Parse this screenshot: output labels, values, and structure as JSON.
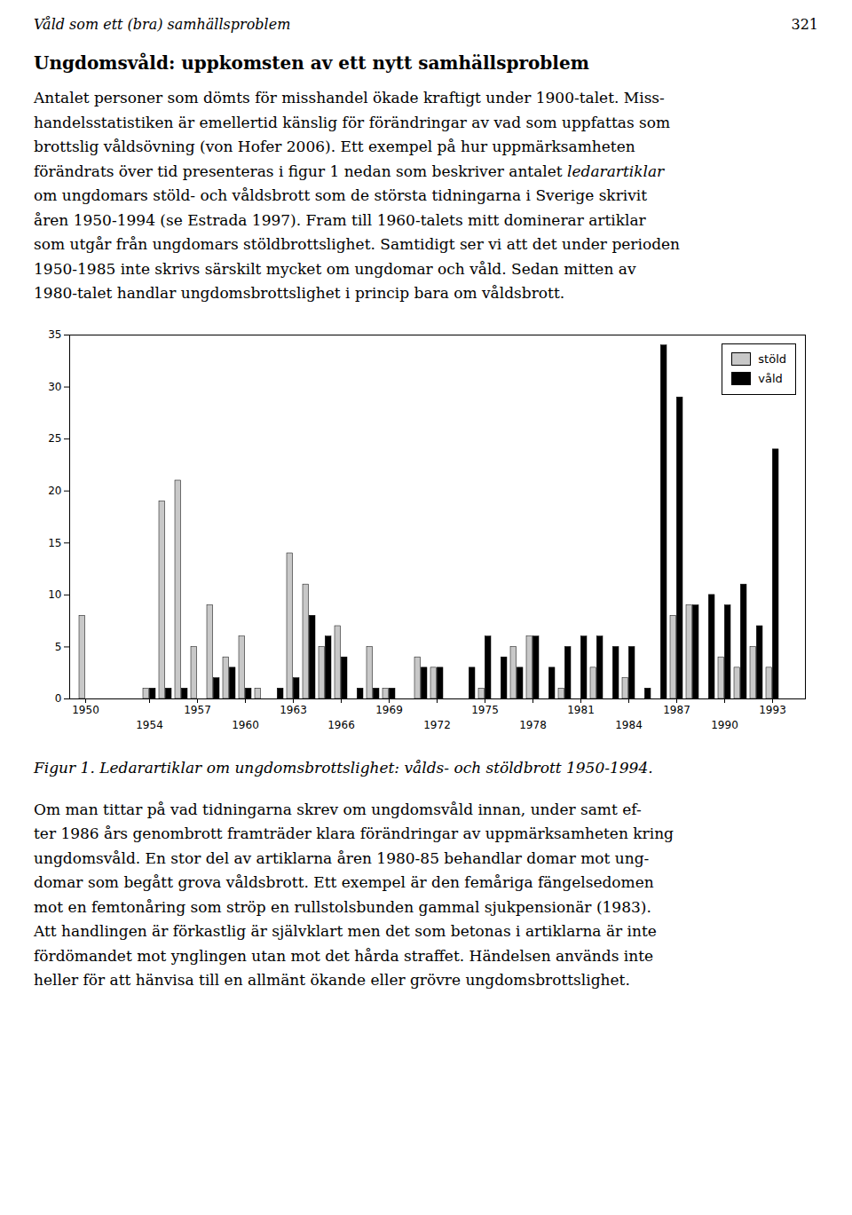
{
  "chart_data": {
    "type": "bar",
    "title": "Figur 1. Ledarartiklar om ungdomsbrottslighet: vålds- och stöldbrott 1950-1994.",
    "categories": [
      "1950",
      null,
      null,
      null,
      "1954",
      null,
      null,
      "1957",
      null,
      null,
      "1960",
      null,
      null,
      "1963",
      null,
      null,
      "1966",
      null,
      null,
      "1969",
      null,
      null,
      "1972",
      null,
      null,
      "1975",
      null,
      null,
      "1978",
      null,
      null,
      "1981",
      null,
      null,
      "1984",
      null,
      null,
      "1987",
      null,
      null,
      "1990",
      null,
      null,
      "1993",
      null
    ],
    "series": [
      {
        "name": "stöld",
        "color": "#c8c8c8",
        "values": [
          8,
          0,
          0,
          0,
          1,
          19,
          21,
          5,
          9,
          4,
          6,
          1,
          0,
          14,
          11,
          5,
          7,
          0,
          5,
          1,
          0,
          4,
          3,
          0,
          0,
          1,
          0,
          5,
          6,
          0,
          1,
          0,
          3,
          0,
          2,
          0,
          0,
          8,
          9,
          0,
          4,
          3,
          5,
          3,
          0
        ]
      },
      {
        "name": "våld",
        "color": "#000000",
        "values": [
          0,
          0,
          0,
          0,
          1,
          1,
          1,
          0,
          2,
          3,
          1,
          0,
          1,
          2,
          8,
          6,
          4,
          1,
          1,
          1,
          0,
          3,
          3,
          0,
          3,
          6,
          4,
          3,
          6,
          3,
          5,
          6,
          6,
          5,
          5,
          1,
          34,
          29,
          9,
          10,
          9,
          11,
          7,
          24,
          0
        ]
      }
    ],
    "ylim": [
      0,
      35
    ],
    "yticks": [
      0,
      5,
      10,
      15,
      20,
      25,
      30,
      35
    ],
    "grid": false,
    "legend": "upper right",
    "annotations": [
      "Våld som ett (bra) samhällsproblem",
      "321",
      "Ungdomsvåld: uppkomsten av ett nytt samhällsproblem",
      "Antalet personer som dömts för misshandel ökade kraftigt under 1900-talet. Miss-",
      "handelsstatistiken är emellertid känslig för förändringar av vad som uppfattas som",
      "brottslig våldsövning (von Hofer 2006). Ett exempel på hur uppmärksamheten",
      [
        "förändrats över tid presenteras i figur 1 nedan som beskriver antalet ",
        "ledarartiklar"
      ],
      "om ungdomars stöld- och våldsbrott som de största tidningarna i Sverige skrivit",
      "åren 1950-1994 (se Estrada 1997). Fram till 1960-talets mitt dominerar artiklar",
      "som utgår från ungdomars stöldbrottslighet. Samtidigt ser vi att det under perioden",
      "1950-1985 inte skrivs särskilt mycket om ungdomar och våld. Sedan mitten av",
      "1980-talet handlar ungdomsbrottslighet i princip bara om våldsbrott.",
      "Om man tittar på vad tidningarna skrev om ungdomsvåld innan, under samt ef-",
      "ter 1986 års genombrott framträder klara förändringar av uppmärksamheten kring",
      "ungdomsvåld. En stor del av artiklarna åren 1980-85 behandlar domar mot ung-",
      "domar som begått grova våldsbrott. Ett exempel är den femåriga fängelsedomen",
      "mot en femtonåring som ströp en rullstolsbunden gammal sjukpensionär (1983).",
      "Att handlingen är förkastlig är självklart men det som betonas i artiklarna är inte",
      "fördömandet mot ynglingen utan mot det hårda straffet. Händelsen används inte",
      "heller för att hänvisa till en allmänt ökande eller grövre ungdomsbrottslighet."
    ]
  }
}
